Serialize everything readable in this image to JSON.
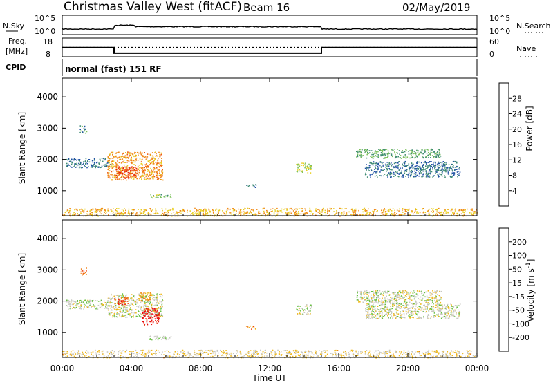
{
  "header": {
    "title": "Christmas Valley West (fitACF)",
    "beam": "Beam 16",
    "date": "02/May/2019"
  },
  "nsky_panel": {
    "left_label": "N.Sky",
    "left_ticks": [
      "10^5",
      "10^0"
    ],
    "right_label": "N.Search",
    "right_ticks": [
      "10^5",
      "10^0"
    ]
  },
  "freq_panel": {
    "left_label_1": "Freq.",
    "left_label_2": "[MHz]",
    "left_ticks": [
      "18",
      "8"
    ],
    "right_label": "Nave",
    "right_ticks": [
      "60",
      "0"
    ],
    "freq_steps": [
      {
        "t0": 0.0,
        "t1": 3.0,
        "mhz": 12.9
      },
      {
        "t0": 3.0,
        "t1": 15.0,
        "mhz": 9.9
      },
      {
        "t0": 15.0,
        "t1": 24.0,
        "mhz": 12.9
      }
    ],
    "nave": 30
  },
  "cpid": {
    "label": "CPID",
    "text": "normal (fast) 151 RF"
  },
  "xaxis": {
    "label": "Time UT",
    "ticks": [
      "00:00",
      "04:00",
      "08:00",
      "12:00",
      "16:00",
      "20:00",
      "00:00"
    ],
    "range_hours": [
      0,
      24
    ]
  },
  "colors": {
    "power_scale": [
      "#1e1ee6",
      "#1f4fa6",
      "#3e8b72",
      "#7cc25a",
      "#e8d020",
      "#f08a18",
      "#f05a10",
      "#e81e10"
    ],
    "velocity_scale": [
      "#1e1ee6",
      "#2a5aa0",
      "#3e8b6a",
      "#66c040",
      "#c8c8c0",
      "#f0b818",
      "#f08018",
      "#f04010",
      "#e81010"
    ],
    "sky_noise": "#000000"
  },
  "chart_data": [
    {
      "type": "heatmap",
      "panel": "power",
      "ylabel": "Slant Range [km]",
      "yticks": [
        "1000",
        "2000",
        "3000",
        "4000"
      ],
      "ylim": [
        200,
        4600
      ],
      "xlim": [
        0,
        24
      ],
      "colorbar": {
        "label": "Power [dB]",
        "ticks": [
          "4",
          "8",
          "12",
          "16",
          "20",
          "24",
          "28"
        ],
        "range": [
          0,
          32
        ]
      },
      "echo_regions": [
        {
          "t0": 0.2,
          "t1": 2.8,
          "r0": 1750,
          "r1": 2050,
          "value_db": 8
        },
        {
          "t0": 2.6,
          "t1": 5.8,
          "r0": 1350,
          "r1": 2250,
          "value_db": 22
        },
        {
          "t0": 3.1,
          "t1": 4.3,
          "r0": 1400,
          "r1": 1800,
          "value_db": 28
        },
        {
          "t0": 1.0,
          "t1": 1.4,
          "r0": 2850,
          "r1": 3100,
          "value_db": 10
        },
        {
          "t0": 5.0,
          "t1": 6.3,
          "r0": 780,
          "r1": 900,
          "value_db": 14
        },
        {
          "t0": 10.6,
          "t1": 11.2,
          "r0": 1120,
          "r1": 1220,
          "value_db": 8
        },
        {
          "t0": 13.5,
          "t1": 14.4,
          "r0": 1580,
          "r1": 1900,
          "value_db": 16
        },
        {
          "t0": 17.0,
          "t1": 21.9,
          "r0": 2050,
          "r1": 2350,
          "value_db": 12
        },
        {
          "t0": 17.5,
          "t1": 23.0,
          "r0": 1450,
          "r1": 1950,
          "value_db": 8
        },
        {
          "t0": 0.0,
          "t1": 24.0,
          "r0": 200,
          "r1": 450,
          "value_db": 20
        }
      ]
    },
    {
      "type": "heatmap",
      "panel": "velocity",
      "ylabel": "Slant Range [km]",
      "yticks": [
        "1000",
        "2000",
        "3000",
        "4000"
      ],
      "ylim": [
        200,
        4600
      ],
      "xlim": [
        0,
        24
      ],
      "colorbar": {
        "label": "Velocity [m s-1]",
        "ticks": [
          "200",
          "100",
          "50",
          "15",
          "-15",
          "-50",
          "-100",
          "-200"
        ],
        "range": [
          -250,
          250
        ]
      },
      "echo_regions": [
        {
          "t0": 0.2,
          "t1": 2.8,
          "r0": 1750,
          "r1": 2050,
          "value_ms": 0
        },
        {
          "t0": 2.6,
          "t1": 5.8,
          "r0": 1500,
          "r1": 2250,
          "value_ms": 0
        },
        {
          "t0": 4.6,
          "t1": 5.6,
          "r0": 1250,
          "r1": 1800,
          "value_ms": -220
        },
        {
          "t0": 3.0,
          "t1": 3.8,
          "r0": 1900,
          "r1": 2150,
          "value_ms": -180
        },
        {
          "t0": 4.4,
          "t1": 5.2,
          "r0": 2000,
          "r1": 2300,
          "value_ms": -80
        },
        {
          "t0": 1.0,
          "t1": 1.4,
          "r0": 2850,
          "r1": 3100,
          "value_ms": -120
        },
        {
          "t0": 5.0,
          "t1": 6.3,
          "r0": 780,
          "r1": 900,
          "value_ms": 20
        },
        {
          "t0": 10.6,
          "t1": 11.2,
          "r0": 1120,
          "r1": 1220,
          "value_ms": -100
        },
        {
          "t0": 13.5,
          "t1": 14.4,
          "r0": 1580,
          "r1": 1900,
          "value_ms": 0
        },
        {
          "t0": 17.0,
          "t1": 21.9,
          "r0": 1950,
          "r1": 2350,
          "value_ms": 0
        },
        {
          "t0": 17.5,
          "t1": 23.0,
          "r0": 1450,
          "r1": 1950,
          "value_ms": 0
        },
        {
          "t0": 0.0,
          "t1": 24.0,
          "r0": 200,
          "r1": 450,
          "value_ms": -30
        }
      ]
    }
  ]
}
